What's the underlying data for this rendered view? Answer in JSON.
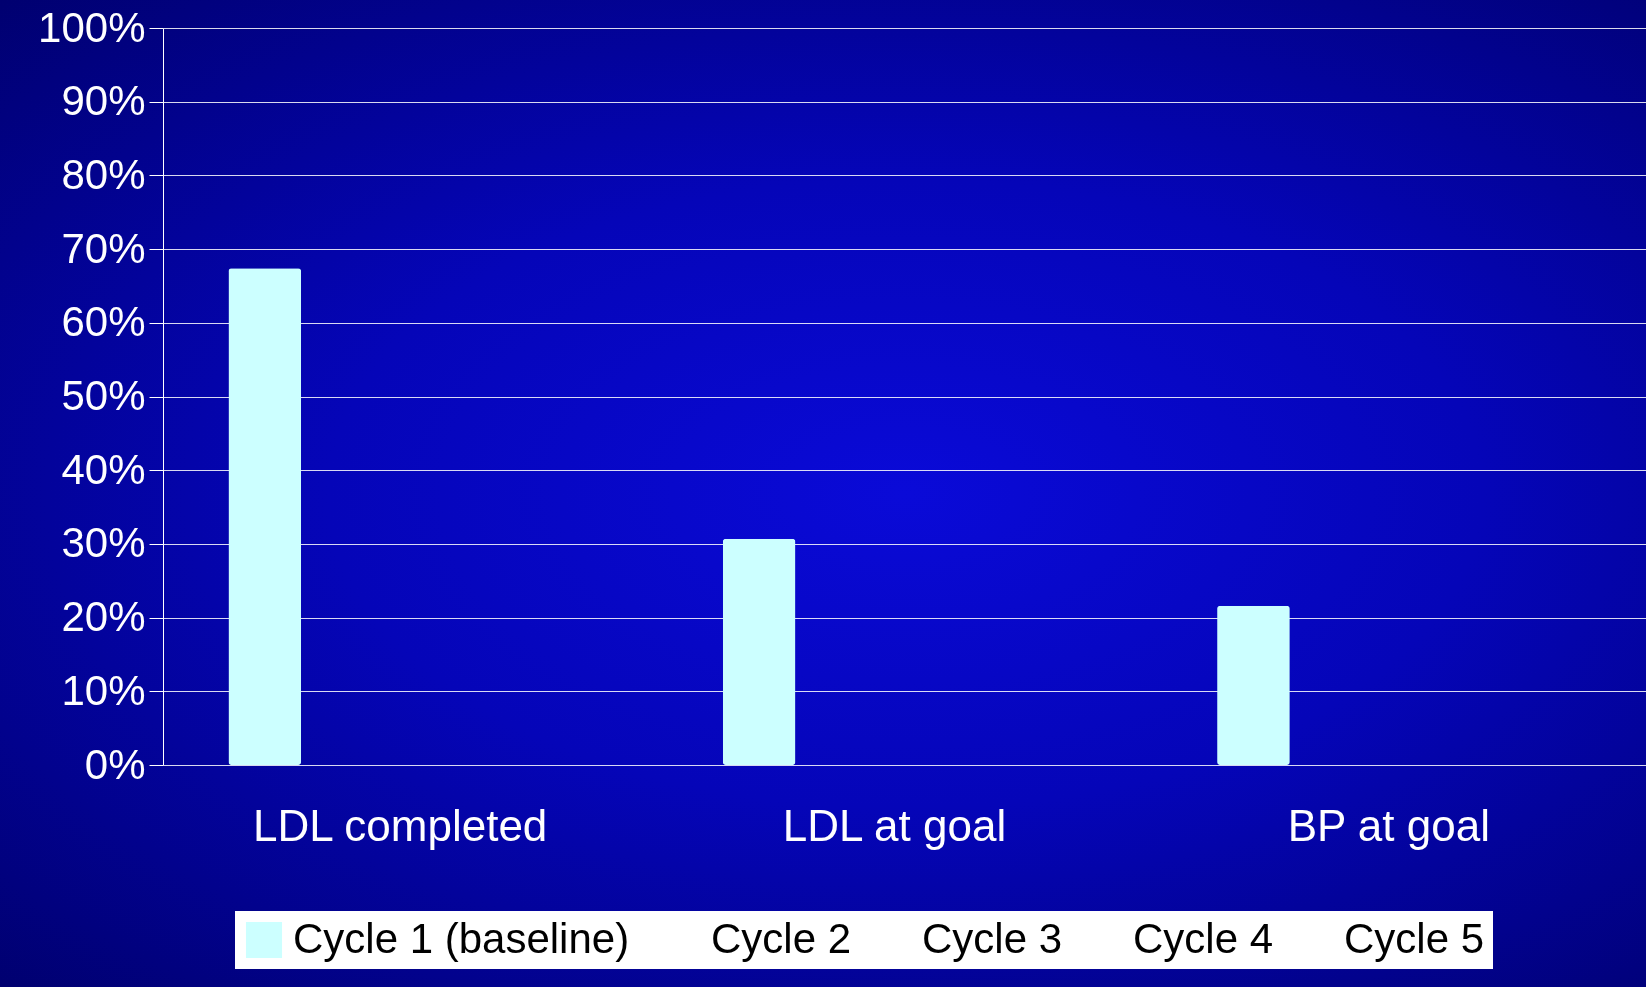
{
  "chart_data": {
    "type": "bar",
    "categories": [
      "LDL completed",
      "LDL at goal",
      "BP at goal"
    ],
    "series": [
      {
        "name": "Cycle 1  (baseline)",
        "color": "#ccffff",
        "values": [
          67.4,
          30.7,
          21.6
        ]
      },
      {
        "name": "Cycle 2",
        "values": [
          null,
          null,
          null
        ]
      },
      {
        "name": "Cycle 3",
        "values": [
          null,
          null,
          null
        ]
      },
      {
        "name": "Cycle 4",
        "values": [
          null,
          null,
          null
        ]
      },
      {
        "name": "Cycle 5",
        "values": [
          null,
          null,
          null
        ]
      }
    ],
    "ylim": [
      0,
      100
    ],
    "yticks": [
      {
        "value": 0,
        "label": "0%"
      },
      {
        "value": 10,
        "label": "10%"
      },
      {
        "value": 20,
        "label": "20%"
      },
      {
        "value": 30,
        "label": "30%"
      },
      {
        "value": 40,
        "label": "40%"
      },
      {
        "value": 50,
        "label": "50%"
      },
      {
        "value": 60,
        "label": "60%"
      },
      {
        "value": 70,
        "label": "70%"
      },
      {
        "value": 80,
        "label": "80%"
      },
      {
        "value": 90,
        "label": "90%"
      },
      {
        "value": 100,
        "label": "100%"
      }
    ],
    "grid": "y",
    "legend": "bottom"
  }
}
